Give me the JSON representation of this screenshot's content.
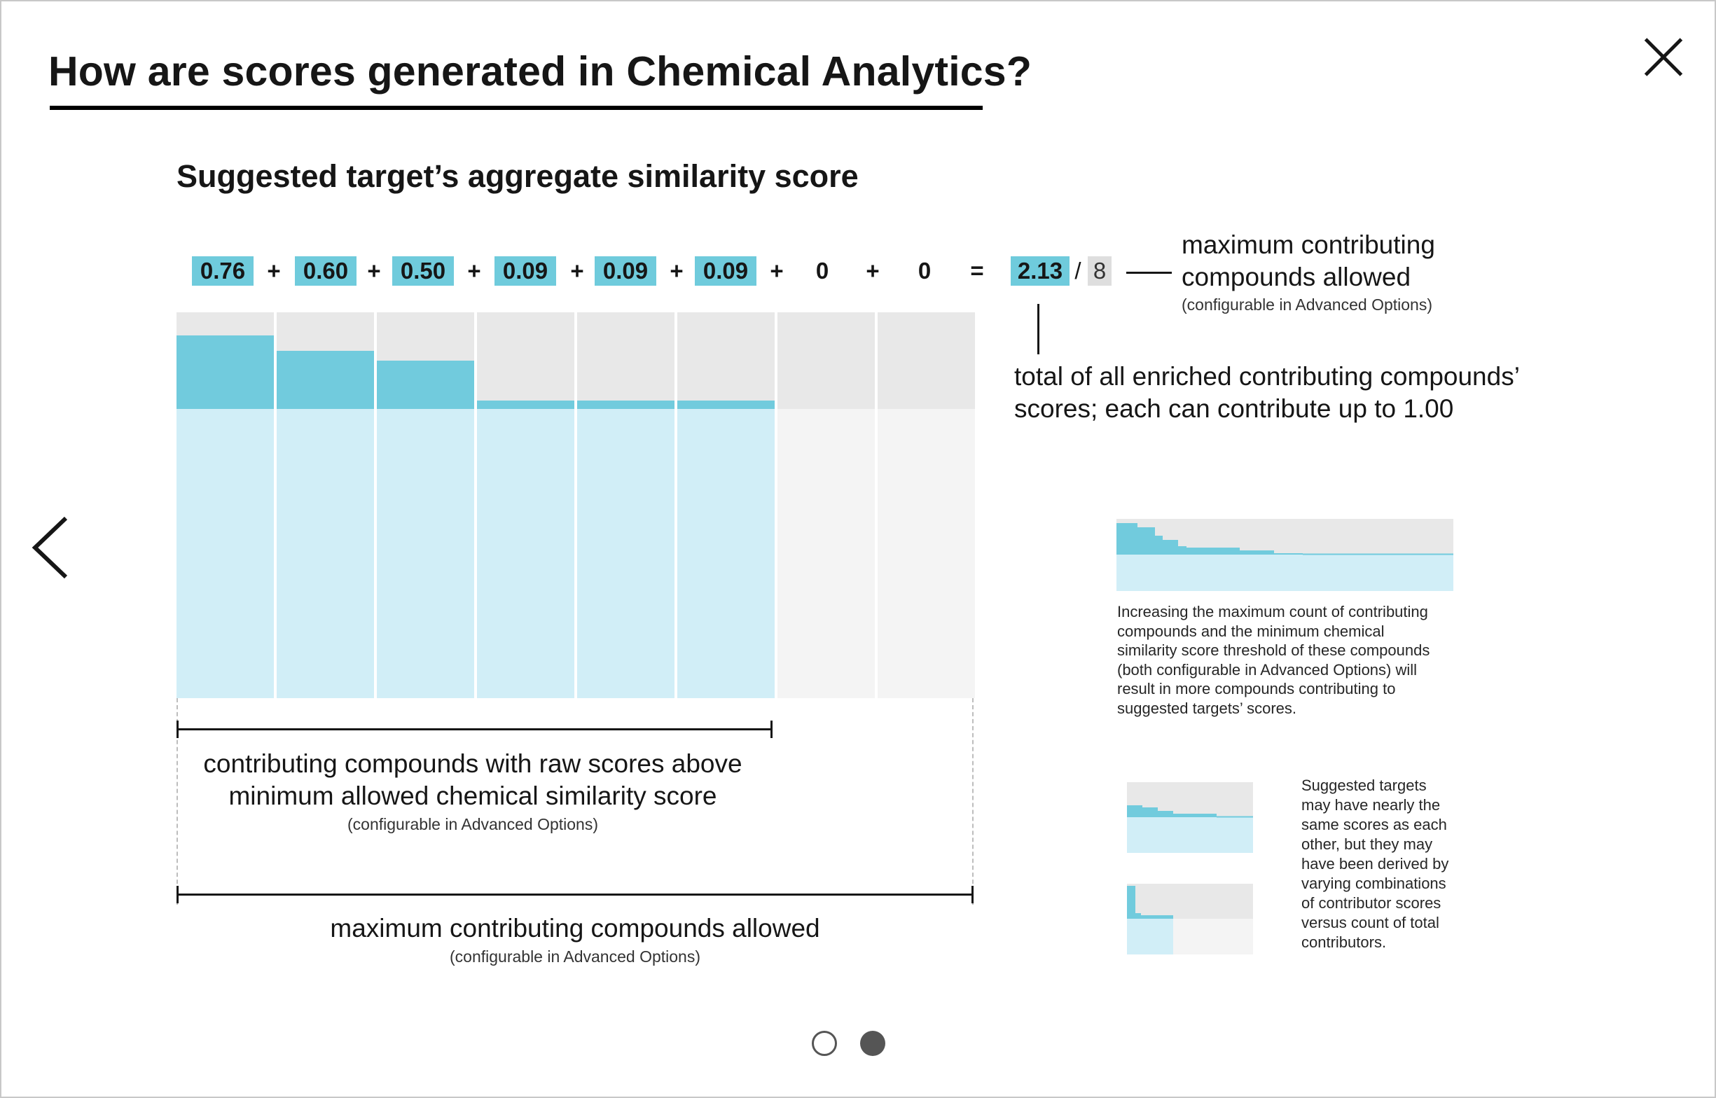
{
  "dialog": {
    "title": "How are scores generated in Chemical Analytics?",
    "close_icon": "close-icon",
    "prev_icon": "chevron-left-icon"
  },
  "slide": {
    "heading": "Suggested target’s aggregate similarity score",
    "equation": {
      "terms": [
        "0.76",
        "0.60",
        "0.50",
        "0.09",
        "0.09",
        "0.09",
        "0",
        "0"
      ],
      "plus": "+",
      "equals": "=",
      "total": "2.13",
      "slash": "/",
      "max": "8"
    },
    "annotations": {
      "max_label_line1": "maximum contributing",
      "max_label_line2": "compounds allowed",
      "max_label_note": "(configurable in Advanced Options)",
      "total_label_line1": "total of all enriched contributing compounds’",
      "total_label_line2": "scores; each can contribute up to 1.00",
      "contrib_line1": "contributing compounds with raw scores above",
      "contrib_line2": "minimum allowed chemical similarity score",
      "contrib_note": "(configurable in Advanced Options)",
      "maxcontrib_line1": "maximum contributing compounds allowed",
      "maxcontrib_note": "(configurable in Advanced Options)"
    },
    "side_note_1": [
      "Increasing the maximum count of contributing",
      "compounds and the minimum chemical",
      "similarity score threshold of these compounds",
      "(both configurable in Advanced Options) will",
      "result in more compounds contributing to",
      "suggested targets’ scores."
    ],
    "side_note_2": [
      "Suggested targets",
      "may have nearly the",
      "same scores as each",
      "other, but they may",
      "have been derived by",
      "varying combinations",
      "of contributor scores",
      "versus count of total",
      "contributors."
    ]
  },
  "chart_data": {
    "type": "bar",
    "categories": [
      "1",
      "2",
      "3",
      "4",
      "5",
      "6",
      "7",
      "8"
    ],
    "values": [
      0.76,
      0.6,
      0.5,
      0.09,
      0.09,
      0.09,
      0,
      0
    ],
    "ylim": [
      0,
      1
    ],
    "colors": {
      "fill": "#71cbdd",
      "fill_light": "#d1eef7",
      "empty": "#e8e8e8",
      "empty_light": "#f4f4f4"
    }
  },
  "pagination": {
    "current": 2,
    "total": 2
  }
}
